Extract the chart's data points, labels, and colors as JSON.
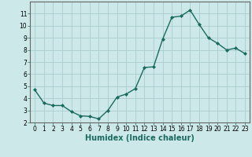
{
  "x": [
    0,
    1,
    2,
    3,
    4,
    5,
    6,
    7,
    8,
    9,
    10,
    11,
    12,
    13,
    14,
    15,
    16,
    17,
    18,
    19,
    20,
    21,
    22,
    23
  ],
  "y": [
    4.7,
    3.6,
    3.4,
    3.4,
    2.9,
    2.55,
    2.5,
    2.3,
    3.0,
    4.1,
    4.35,
    4.8,
    6.55,
    6.6,
    8.9,
    10.7,
    10.8,
    11.3,
    10.1,
    9.0,
    8.55,
    8.0,
    8.15,
    7.7
  ],
  "line_color": "#1a6b5e",
  "marker": "D",
  "marker_size": 2.0,
  "bg_color": "#cce8e8",
  "grid_color": "#aacccc",
  "xlabel": "Humidex (Indice chaleur)",
  "ylim": [
    2,
    12
  ],
  "xlim": [
    -0.5,
    23.5
  ],
  "yticks": [
    2,
    3,
    4,
    5,
    6,
    7,
    8,
    9,
    10,
    11
  ],
  "xticks": [
    0,
    1,
    2,
    3,
    4,
    5,
    6,
    7,
    8,
    9,
    10,
    11,
    12,
    13,
    14,
    15,
    16,
    17,
    18,
    19,
    20,
    21,
    22,
    23
  ],
  "tick_label_fontsize": 5.5,
  "xlabel_fontsize": 7.0,
  "line_width": 1.0
}
